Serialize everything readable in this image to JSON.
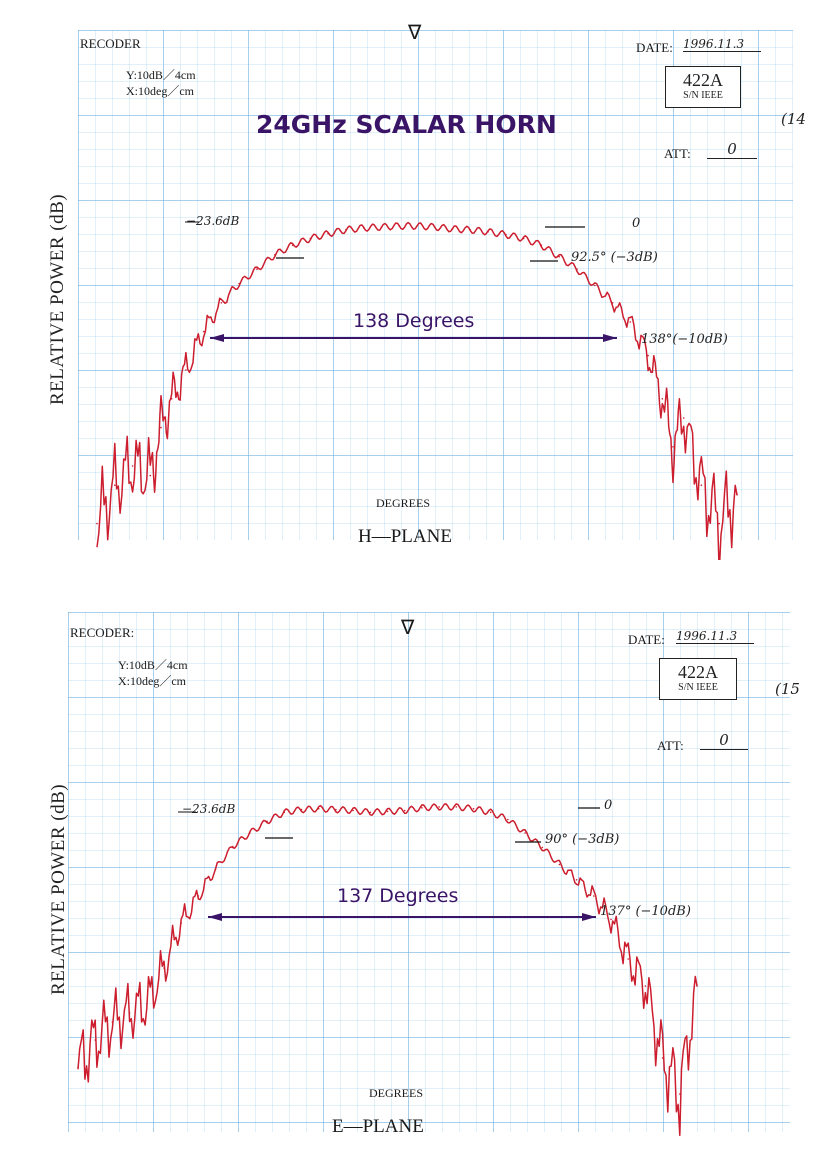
{
  "title": "24GHz SCALAR HORN",
  "colors": {
    "trace": "#cc1e2e",
    "arrow": "#3a1466",
    "grid": "#78b4e1"
  },
  "charts": [
    {
      "id": "h",
      "recorder": "RECODER",
      "date_label": "DATE:",
      "date_value": "1996.11.3",
      "box_main": "422A",
      "box_sub": "S/N IEEE",
      "att_label": "ATT:",
      "att_value": "0",
      "page_no": "(14",
      "y_scale": "Y:10dB／4cm",
      "x_scale": "X:10deg／cm",
      "ylabel": "RELATIVE POWER (dB)",
      "xlabel": "DEGREES",
      "plane": "H—PLANE",
      "span_text": "138 Degrees",
      "ann_ref": "−23.6dB",
      "ann_zero": "0",
      "ann_3db": "92.5° (−3dB)",
      "ann_10db": "138°(−10dB)",
      "marker": "∇"
    },
    {
      "id": "e",
      "recorder": "RECODER:",
      "date_label": "DATE:",
      "date_value": "1996.11.3",
      "box_main": "422A",
      "box_sub": "S/N IEEE",
      "att_label": "ATT:",
      "att_value": "0",
      "page_no": "(15",
      "y_scale": "Y:10dB／4cm",
      "x_scale": "X:10deg／cm",
      "ylabel": "RELATIVE POWER (dB)",
      "xlabel": "DEGREES",
      "plane": "E—PLANE",
      "span_text": "137 Degrees",
      "ann_ref": "−23.6dB",
      "ann_zero": "0",
      "ann_3db": "90° (−3dB)",
      "ann_10db": "137° (−10dB)",
      "marker": "∇"
    }
  ],
  "chart_data": [
    {
      "type": "line",
      "plane": "H-PLANE",
      "xlabel": "DEGREES",
      "ylabel": "RELATIVE POWER (dB)",
      "x_unit": "deg",
      "y_unit": "dB",
      "x": [
        -90,
        -85,
        -80,
        -75,
        -72,
        -69,
        -65,
        -60,
        -55,
        -50,
        -45,
        -40,
        -35,
        -30,
        -25,
        -20,
        -15,
        -10,
        -5,
        0,
        5,
        10,
        15,
        20,
        25,
        30,
        35,
        40,
        45,
        50,
        55,
        60,
        65,
        69,
        72,
        75,
        80,
        85,
        90
      ],
      "y": [
        -31,
        -27,
        -25,
        -26,
        -21,
        -18,
        -15,
        -11,
        -8,
        -6,
        -4.5,
        -3,
        -2,
        -1.3,
        -0.8,
        -0.4,
        -0.2,
        -0.1,
        0,
        0,
        -0.1,
        -0.3,
        -0.4,
        -0.6,
        -0.9,
        -1.3,
        -2,
        -3.2,
        -4.5,
        -6.2,
        -8,
        -10,
        -13.5,
        -18,
        -23,
        -20,
        -27,
        -31,
        -28
      ],
      "annotations": {
        "ref_level_db": -23.6,
        "half_power_beamwidth_deg": 92.5,
        "minus10db_beamwidth_deg": 138
      }
    },
    {
      "type": "line",
      "plane": "E-PLANE",
      "xlabel": "DEGREES",
      "ylabel": "RELATIVE POWER (dB)",
      "x_unit": "deg",
      "y_unit": "dB",
      "x": [
        -90,
        -85,
        -80,
        -75,
        -70,
        -65,
        -60,
        -55,
        -50,
        -45,
        -40,
        -35,
        -30,
        -25,
        -20,
        -15,
        -10,
        -5,
        0,
        5,
        10,
        15,
        20,
        25,
        30,
        35,
        40,
        45,
        50,
        55,
        60,
        65,
        70,
        75,
        80,
        85,
        90
      ],
      "y": [
        -29,
        -26,
        -24,
        -23,
        -22,
        -18,
        -13,
        -10,
        -7,
        -4.5,
        -3,
        -1.7,
        -0.7,
        -0.4,
        -0.3,
        -0.4,
        -0.5,
        -0.7,
        -0.6,
        -0.5,
        -0.2,
        -0.1,
        -0.1,
        -0.3,
        -0.7,
        -1.5,
        -3,
        -4.6,
        -6.5,
        -8.2,
        -10,
        -12.6,
        -17,
        -20,
        -28,
        -32,
        -20
      ],
      "annotations": {
        "ref_level_db": -23.6,
        "half_power_beamwidth_deg": 90,
        "minus10db_beamwidth_deg": 137
      }
    }
  ]
}
